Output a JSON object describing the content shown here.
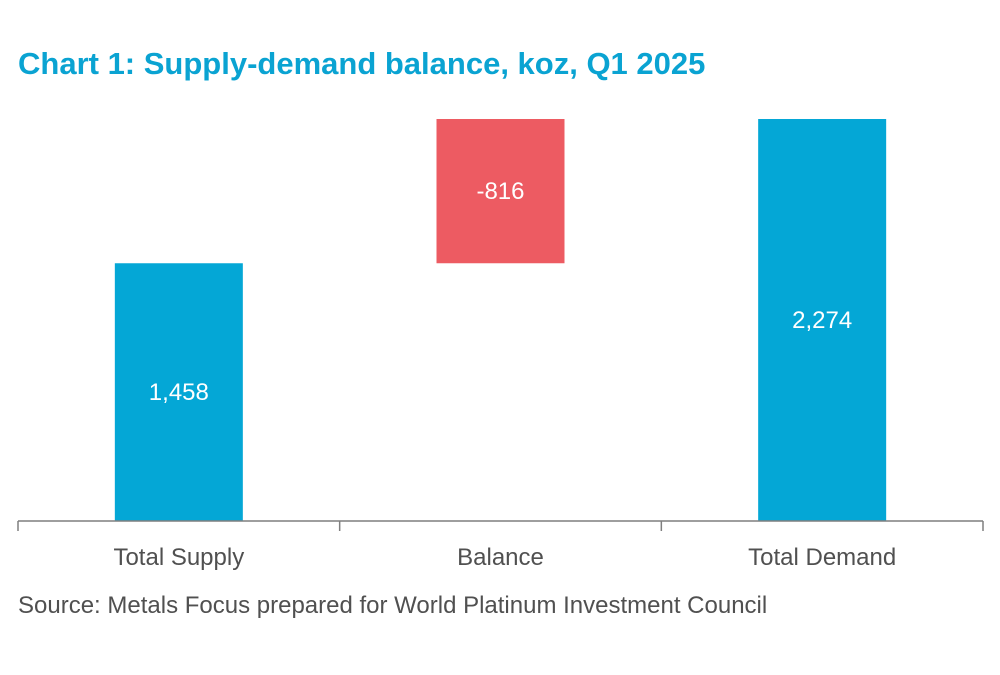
{
  "title": "Chart 1: Supply-demand balance, koz, Q1 2025",
  "source": "Source: Metals Focus prepared for World Platinum Investment Council",
  "colors": {
    "positive": "#04a7d6",
    "negative": "#ed5b62",
    "title": "#0aa3d2",
    "axis": "#7f7f7f",
    "text": "#505050"
  },
  "chart_data": {
    "type": "bar",
    "subtype": "waterfall",
    "categories": [
      "Total Supply",
      "Balance",
      "Total Demand"
    ],
    "values": [
      1458,
      -816,
      2274
    ],
    "value_labels": [
      "1,458",
      "-816",
      "2,274"
    ],
    "bar_start": [
      0,
      2274,
      0
    ],
    "bar_end": [
      1458,
      1458,
      2274
    ],
    "title": "Chart 1: Supply-demand balance, koz, Q1 2025",
    "xlabel": "",
    "ylabel": "",
    "ylim": [
      0,
      2274
    ],
    "grid": false,
    "legend": "none"
  }
}
